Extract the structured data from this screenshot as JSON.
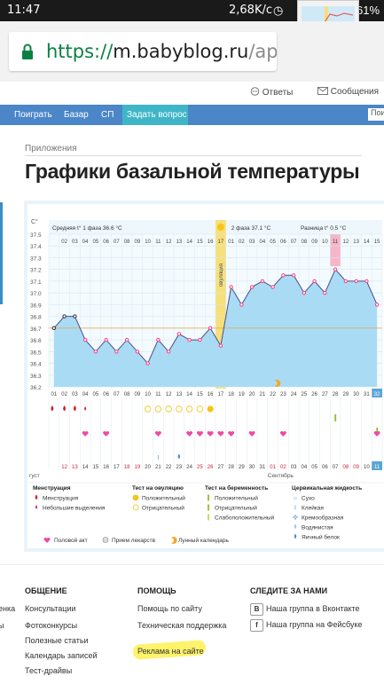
{
  "status": {
    "time": "11:47",
    "network": "2,68K/c",
    "battery": "61%"
  },
  "browser": {
    "url_scheme": "https://",
    "url_host": "m.babyblog.ru",
    "url_path": "/app/bas"
  },
  "topnav": {
    "answers": "Ответы",
    "messages": "Сообщения"
  },
  "mainnav": {
    "items": [
      "Поиграть",
      "Базар",
      "СП",
      "Задать вопрос"
    ],
    "search": "Поис"
  },
  "breadcrumb": "Приложения",
  "page_title": "Графики базальной температуры",
  "chart_data": {
    "type": "line",
    "yaxis_title": "C°",
    "ylim": [
      36.2,
      37.5
    ],
    "yticks": [
      "37.5",
      "37.4",
      "37.3",
      "37.2",
      "37.1",
      "37.0",
      "36.9",
      "36.8",
      "36.7",
      "36.6",
      "36.5",
      "36.4",
      "36.3",
      "36.2"
    ],
    "phase1_label": "Средняя t° 1 фаза 36.6 °C",
    "phase2_label": "2 фаза 37.1 °C",
    "diff_label": "Разница t° 0.5 °C",
    "ovulation_label": "овуляция",
    "top_days": [
      "",
      "02",
      "03",
      "04",
      "05",
      "06",
      "07",
      "08",
      "09",
      "10",
      "11",
      "12",
      "13",
      "14",
      "15",
      "16",
      "17",
      "01",
      "02",
      "03",
      "04",
      "05",
      "06",
      "07",
      "08",
      "09",
      "10",
      "11",
      "12",
      "13",
      "14",
      "15"
    ],
    "bottom_days": [
      "01",
      "02",
      "03",
      "04",
      "05",
      "06",
      "07",
      "08",
      "09",
      "10",
      "11",
      "12",
      "13",
      "14",
      "15",
      "16",
      "17",
      "18",
      "19",
      "20",
      "21",
      "22",
      "23",
      "24",
      "25",
      "26",
      "27",
      "28",
      "29",
      "30",
      "31",
      "32"
    ],
    "calendar_dates": [
      "",
      "12",
      "13",
      "14",
      "15",
      "16",
      "17",
      "18",
      "19",
      "20",
      "21",
      "22",
      "23",
      "24",
      "25",
      "26",
      "27",
      "28",
      "29",
      "30",
      "31",
      "01",
      "02",
      "03",
      "04",
      "05",
      "06",
      "07",
      "08",
      "09",
      "10",
      "11"
    ],
    "month_left": "густ",
    "month_right": "Сентябрь",
    "temperatures": [
      36.7,
      36.8,
      36.8,
      36.6,
      36.5,
      36.6,
      36.5,
      36.6,
      36.5,
      36.4,
      36.6,
      36.5,
      36.65,
      36.6,
      36.6,
      36.7,
      36.55,
      37.05,
      36.9,
      37.05,
      37.1,
      37.05,
      37.15,
      37.15,
      37.0,
      37.1,
      37.0,
      37.2,
      37.1,
      37.1,
      37.1,
      36.9
    ]
  },
  "legend": {
    "menstruation": {
      "title": "Менструация",
      "items": [
        "Менструация",
        "Небольшие выделения"
      ]
    },
    "ovulation_test": {
      "title": "Тест на овуляцию",
      "items": [
        "Положительный",
        "Отрицательный"
      ]
    },
    "pregnancy_test": {
      "title": "Тест на беременность",
      "items": [
        "Положительный",
        "Отрицательный",
        "Слабоположительный"
      ]
    },
    "cervical": {
      "title": "Цервикальная жидкость",
      "items": [
        "Сухо",
        "Клейкая",
        "Кремообразная",
        "Водянистая",
        "Яичный белок"
      ]
    },
    "bottom": [
      "Половой акт",
      "Прием лекарств",
      "Лунный календарь"
    ]
  },
  "footer": {
    "col1": {
      "title": "ОБЩЕНИЕ",
      "links": [
        "Консультации",
        "Фотоконкурсы",
        "Полезные статьи",
        "Календарь записей",
        "Тест-драйвы"
      ]
    },
    "col2": {
      "title": "ПОМОЩЬ",
      "links": [
        "Помощь по сайту",
        "Техническая поддержка",
        "Реклама на сайте"
      ]
    },
    "col3": {
      "title": "СЛЕДИТЕ ЗА НАМИ",
      "links": [
        "Наша группа в Вконтакте",
        "Наша группа на Фейсбуке"
      ]
    },
    "left_cut": [
      "енка",
      "ы",
      ""
    ]
  },
  "colors": {
    "accent_blue": "#4a86c8",
    "teal": "#3fb6c7",
    "chart_fill": "#a9dcf4",
    "point": "#ff3f7f",
    "ovulation": "#f7e07a"
  }
}
